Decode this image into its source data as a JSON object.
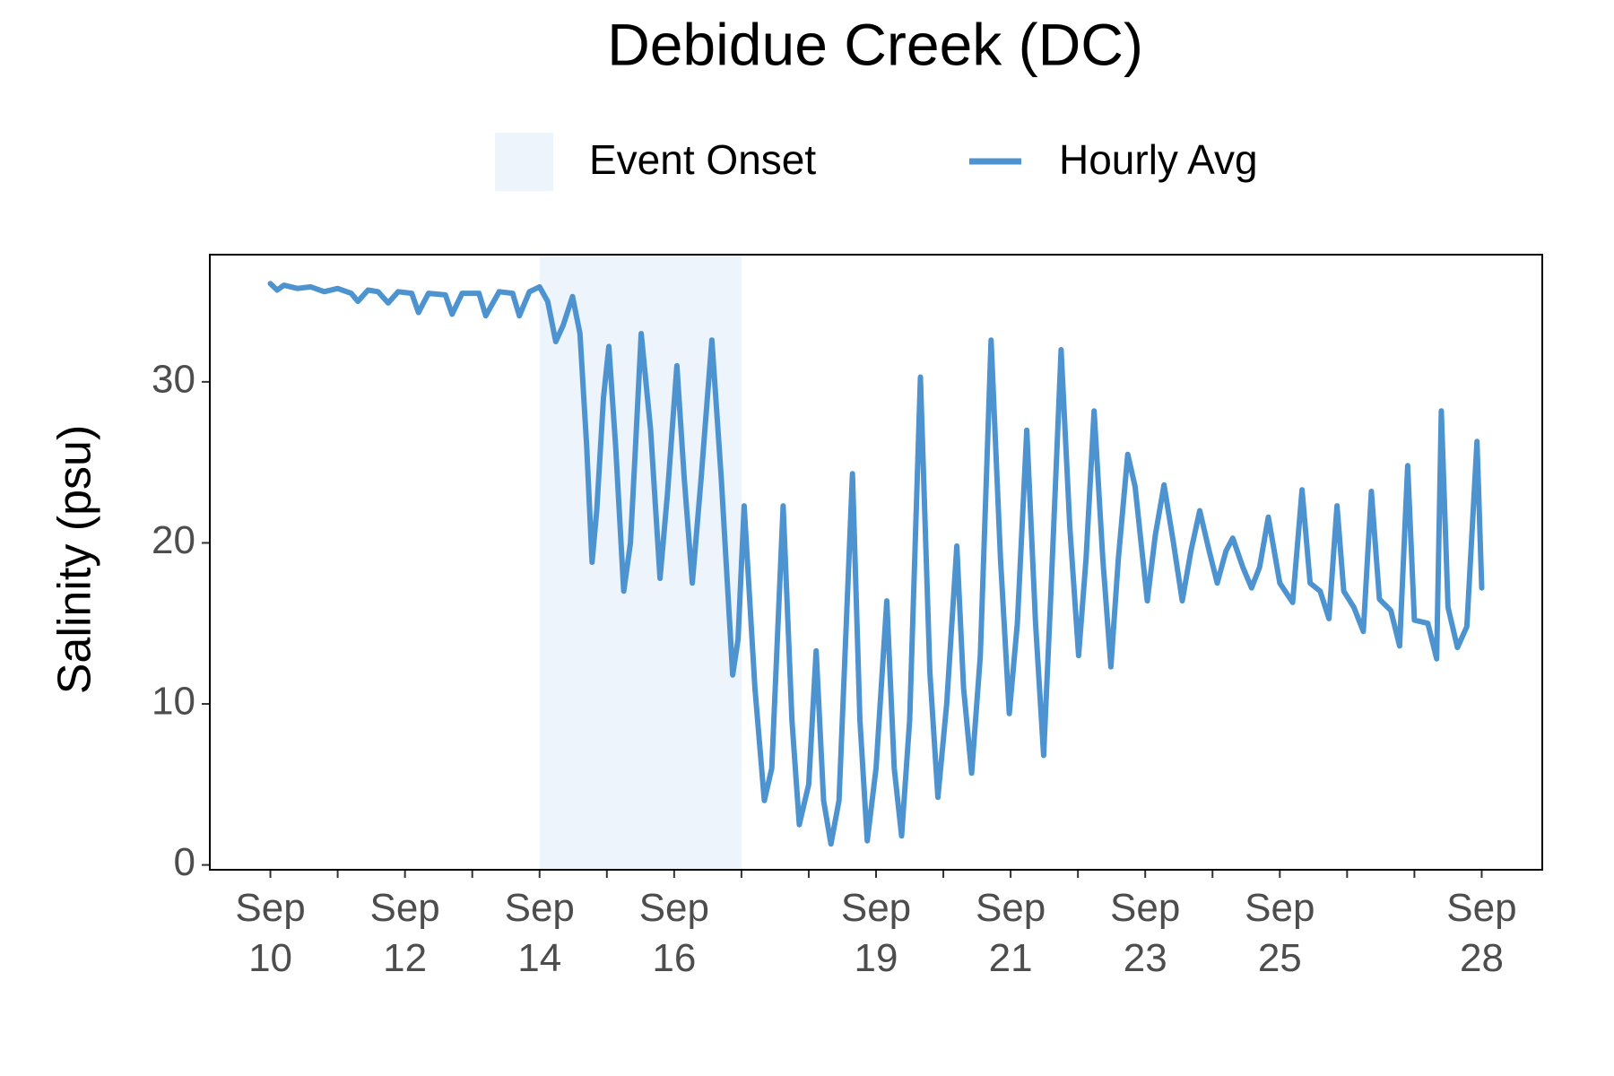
{
  "chart_data": {
    "type": "line",
    "title": "Debidue Creek (DC)",
    "y_label": "Salinity (psu)",
    "legend": "top",
    "shaded_region": {
      "name": "Event Onset",
      "start": 14,
      "end": 17,
      "color": "#edf4fb"
    },
    "x": [
      10.0,
      10.1,
      10.2,
      10.4,
      10.6,
      10.8,
      11.0,
      11.2,
      11.3,
      11.45,
      11.6,
      11.75,
      11.9,
      12.1,
      12.2,
      12.35,
      12.6,
      12.7,
      12.85,
      13.1,
      13.2,
      13.4,
      13.6,
      13.7,
      13.85,
      14.0,
      14.12,
      14.24,
      14.35,
      14.49,
      14.6,
      14.7,
      14.78,
      14.85,
      14.95,
      15.03,
      15.13,
      15.25,
      15.35,
      15.42,
      15.51,
      15.65,
      15.79,
      15.9,
      16.04,
      16.15,
      16.27,
      16.4,
      16.56,
      16.7,
      16.87,
      16.95,
      17.04,
      17.2,
      17.34,
      17.45,
      17.62,
      17.75,
      17.86,
      18.0,
      18.11,
      18.22,
      18.33,
      18.45,
      18.65,
      18.76,
      18.87,
      19.0,
      19.16,
      19.27,
      19.38,
      19.5,
      19.66,
      19.8,
      19.92,
      20.05,
      20.2,
      20.3,
      20.42,
      20.55,
      20.71,
      20.85,
      20.98,
      21.1,
      21.24,
      21.37,
      21.49,
      21.6,
      21.75,
      21.88,
      22.01,
      22.12,
      22.24,
      22.37,
      22.49,
      22.6,
      22.74,
      22.85,
      23.03,
      23.15,
      23.28,
      23.42,
      23.55,
      23.68,
      23.81,
      23.95,
      24.07,
      24.2,
      24.3,
      24.45,
      24.58,
      24.7,
      24.83,
      25.0,
      25.19,
      25.33,
      25.45,
      25.6,
      25.73,
      25.85,
      25.95,
      26.1,
      26.24,
      26.36,
      26.48,
      26.65,
      26.78,
      26.9,
      27.0,
      27.2,
      27.33,
      27.4,
      27.5,
      27.64,
      27.78,
      27.93,
      28.0
    ],
    "series": [
      {
        "name": "Hourly Avg",
        "color": "#4d93d0",
        "values": [
          36.1,
          35.7,
          36.0,
          35.8,
          35.9,
          35.6,
          35.8,
          35.5,
          35.0,
          35.7,
          35.6,
          34.9,
          35.6,
          35.5,
          34.3,
          35.5,
          35.4,
          34.2,
          35.5,
          35.5,
          34.1,
          35.6,
          35.5,
          34.1,
          35.6,
          35.9,
          35.0,
          32.5,
          33.5,
          35.3,
          33.0,
          26.0,
          18.8,
          22.0,
          29.0,
          32.2,
          26.0,
          17.0,
          20.0,
          25.5,
          33.0,
          27.0,
          17.8,
          23.0,
          31.0,
          24.0,
          17.5,
          24.0,
          32.6,
          24.0,
          11.8,
          14.0,
          22.3,
          11.0,
          4.0,
          6.0,
          22.3,
          9.0,
          2.5,
          5.0,
          13.3,
          4.0,
          1.3,
          4.0,
          24.3,
          9.0,
          1.5,
          6.0,
          16.4,
          6.0,
          1.8,
          9.0,
          30.3,
          12.0,
          4.2,
          10.0,
          19.8,
          11.0,
          5.7,
          13.0,
          32.6,
          19.0,
          9.4,
          15.0,
          27.0,
          15.0,
          6.8,
          17.0,
          32.0,
          21.0,
          13.0,
          19.0,
          28.2,
          19.0,
          12.3,
          19.0,
          25.5,
          23.5,
          16.4,
          20.5,
          23.6,
          20.0,
          16.4,
          19.5,
          22.0,
          19.5,
          17.5,
          19.5,
          20.3,
          18.5,
          17.2,
          18.5,
          21.6,
          17.5,
          16.3,
          23.3,
          17.5,
          17.0,
          15.3,
          22.3,
          17.0,
          16.0,
          14.5,
          23.2,
          16.5,
          15.8,
          13.6,
          24.8,
          15.2,
          15.0,
          12.8,
          28.2,
          16.0,
          13.5,
          14.8,
          26.3,
          17.2
        ]
      }
    ],
    "xlim": [
      9.1,
      28.9
    ],
    "xticks": [
      {
        "value": 10,
        "label": "Sep 10"
      },
      {
        "value": 12,
        "label": "Sep 12"
      },
      {
        "value": 14,
        "label": "Sep 14"
      },
      {
        "value": 16,
        "label": "Sep 16"
      },
      {
        "value": 19,
        "label": "Sep 19"
      },
      {
        "value": 21,
        "label": "Sep 21"
      },
      {
        "value": 23,
        "label": "Sep 23"
      },
      {
        "value": 25,
        "label": "Sep 25"
      },
      {
        "value": 28,
        "label": "Sep 28"
      }
    ],
    "xminorticks": [
      11,
      13,
      15,
      17,
      18,
      20,
      22,
      24,
      26,
      27
    ],
    "ylim": [
      -0.3,
      37.9
    ],
    "yticks": [
      0,
      10,
      20,
      30
    ],
    "grid": false
  }
}
